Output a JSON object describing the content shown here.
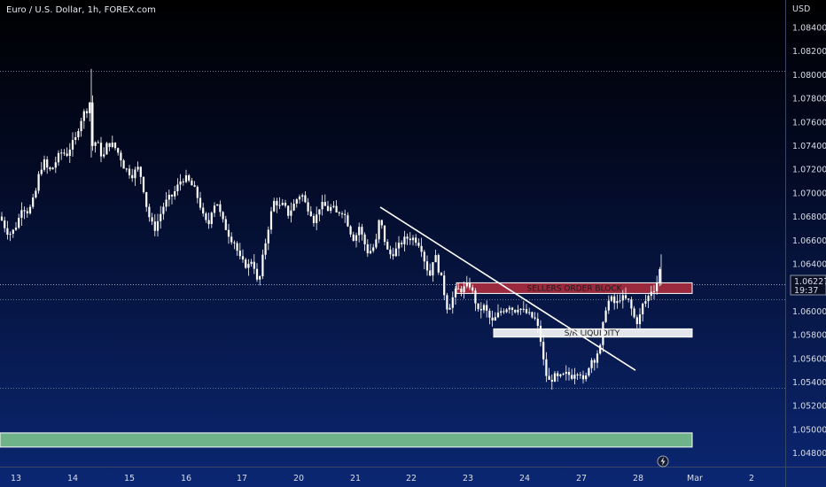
{
  "header": {
    "symbol_title": "Euro / U.S. Dollar, 1h, FOREX.com",
    "currency": "USD"
  },
  "price_label": {
    "price": "1.06227",
    "countdown": "19:37"
  },
  "colors": {
    "background_top": "#000000",
    "background_bottom": "#0a2470",
    "candle": "#ffffff",
    "seller_zone": "#9b2a3f",
    "sr_zone": "#e3e6ea",
    "green_zone": "#6fb38a",
    "trendline": "#ffffff"
  },
  "zones": {
    "sellers_label": "SELLERS ORDER BLOCK",
    "sr_label": "S/R LIQUIDITY"
  },
  "chart_data": {
    "type": "candlestick",
    "ylim": [
      1.0472,
      1.086
    ],
    "y_ticks": [
      "1.08400",
      "1.08200",
      "1.08000",
      "1.07800",
      "1.07600",
      "1.07400",
      "1.07200",
      "1.07000",
      "1.06800",
      "1.06600",
      "1.06400",
      "1.06200",
      "1.06000",
      "1.05800",
      "1.05600",
      "1.05400",
      "1.05200",
      "1.05000",
      "1.04800"
    ],
    "x_ticks": [
      "13",
      "14",
      "15",
      "16",
      "17",
      "20",
      "21",
      "22",
      "23",
      "24",
      "27",
      "28",
      "Mar",
      "2"
    ],
    "current_price": 1.06227,
    "horizontal_levels": [
      1.0803,
      1.061,
      1.0535
    ],
    "zones": [
      {
        "name": "SELLERS ORDER BLOCK",
        "from": 1.0615,
        "to": 1.0624
      },
      {
        "name": "S/R LIQUIDITY",
        "from": 1.0578,
        "to": 1.0585
      },
      {
        "name": "",
        "from": 1.0485,
        "to": 1.0497
      }
    ],
    "trendline": [
      [
        1.0688,
        "21"
      ],
      [
        1.055,
        "28"
      ]
    ],
    "close_path": [
      [
        0,
        1.068
      ],
      [
        5,
        1.0672
      ],
      [
        10,
        1.0665
      ],
      [
        15,
        1.0668
      ],
      [
        20,
        1.0675
      ],
      [
        25,
        1.069
      ],
      [
        30,
        1.0684
      ],
      [
        35,
        1.0688
      ],
      [
        40,
        1.07
      ],
      [
        45,
        1.072
      ],
      [
        50,
        1.0726
      ],
      [
        55,
        1.0718
      ],
      [
        60,
        1.0722
      ],
      [
        65,
        1.073
      ],
      [
        70,
        1.0735
      ],
      [
        75,
        1.0732
      ],
      [
        80,
        1.074
      ],
      [
        85,
        1.0745
      ],
      [
        90,
        1.076
      ],
      [
        95,
        1.0768
      ],
      [
        100,
        1.0772
      ],
      [
        102,
        1.078
      ],
      [
        105,
        1.073
      ],
      [
        108,
        1.0745
      ],
      [
        112,
        1.0738
      ],
      [
        116,
        1.0728
      ],
      [
        120,
        1.074
      ],
      [
        125,
        1.0742
      ],
      [
        130,
        1.0738
      ],
      [
        135,
        1.0732
      ],
      [
        140,
        1.0722
      ],
      [
        145,
        1.0718
      ],
      [
        150,
        1.0715
      ],
      [
        155,
        1.0722
      ],
      [
        160,
        1.0712
      ],
      [
        165,
        1.069
      ],
      [
        170,
        1.0675
      ],
      [
        175,
        1.067
      ],
      [
        180,
        1.068
      ],
      [
        185,
        1.069
      ],
      [
        190,
        1.0695
      ],
      [
        195,
        1.0698
      ],
      [
        200,
        1.0705
      ],
      [
        205,
        1.0712
      ],
      [
        210,
        1.0712
      ],
      [
        215,
        1.0708
      ],
      [
        220,
        1.0702
      ],
      [
        225,
        1.0692
      ],
      [
        230,
        1.0678
      ],
      [
        235,
        1.0672
      ],
      [
        240,
        1.069
      ],
      [
        245,
        1.0692
      ],
      [
        250,
        1.0678
      ],
      [
        255,
        1.067
      ],
      [
        260,
        1.0662
      ],
      [
        265,
        1.0658
      ],
      [
        270,
        1.0645
      ],
      [
        275,
        1.064
      ],
      [
        280,
        1.0638
      ],
      [
        285,
        1.0645
      ],
      [
        290,
        1.0625
      ],
      [
        293,
        1.0628
      ],
      [
        297,
        1.0648
      ],
      [
        300,
        1.066
      ],
      [
        305,
        1.068
      ],
      [
        310,
        1.0695
      ],
      [
        315,
        1.0688
      ],
      [
        320,
        1.069
      ],
      [
        325,
        1.0682
      ],
      [
        330,
        1.0688
      ],
      [
        335,
        1.0695
      ],
      [
        340,
        1.07
      ],
      [
        345,
        1.069
      ],
      [
        350,
        1.0685
      ],
      [
        355,
        1.0675
      ],
      [
        360,
        1.0688
      ],
      [
        365,
        1.069
      ],
      [
        370,
        1.0686
      ],
      [
        375,
        1.0688
      ],
      [
        380,
        1.0682
      ],
      [
        385,
        1.0686
      ],
      [
        390,
        1.068
      ],
      [
        395,
        1.0668
      ],
      [
        400,
        1.066
      ],
      [
        405,
        1.0672
      ],
      [
        410,
        1.066
      ],
      [
        415,
        1.065
      ],
      [
        420,
        1.0652
      ],
      [
        425,
        1.066
      ],
      [
        428,
        1.0678
      ],
      [
        432,
        1.0668
      ],
      [
        436,
        1.0652
      ],
      [
        440,
        1.0648
      ],
      [
        445,
        1.065
      ],
      [
        450,
        1.0655
      ],
      [
        455,
        1.066
      ],
      [
        460,
        1.0662
      ],
      [
        465,
        1.0662
      ],
      [
        470,
        1.066
      ],
      [
        475,
        1.0655
      ],
      [
        480,
        1.064
      ],
      [
        485,
        1.063
      ],
      [
        490,
        1.065
      ],
      [
        495,
        1.0635
      ],
      [
        500,
        1.0622
      ],
      [
        503,
        1.0605
      ],
      [
        506,
        1.0602
      ],
      [
        510,
        1.061
      ],
      [
        515,
        1.0618
      ],
      [
        520,
        1.0618
      ],
      [
        525,
        1.062
      ],
      [
        530,
        1.0622
      ],
      [
        535,
        1.0612
      ],
      [
        540,
        1.0598
      ],
      [
        545,
        1.0605
      ],
      [
        550,
        1.0598
      ],
      [
        555,
        1.059
      ],
      [
        560,
        1.0595
      ],
      [
        565,
        1.06
      ],
      [
        570,
        1.0602
      ],
      [
        575,
        1.0605
      ],
      [
        580,
        1.06
      ],
      [
        585,
        1.0604
      ],
      [
        590,
        1.06
      ],
      [
        595,
        1.0598
      ],
      [
        600,
        1.0595
      ],
      [
        605,
        1.0592
      ],
      [
        610,
        1.0575
      ],
      [
        615,
        1.0548
      ],
      [
        620,
        1.054
      ],
      [
        625,
        1.0545
      ],
      [
        630,
        1.0543
      ],
      [
        635,
        1.0545
      ],
      [
        640,
        1.0547
      ],
      [
        645,
        1.0545
      ],
      [
        650,
        1.055
      ],
      [
        655,
        1.0548
      ],
      [
        658,
        1.054
      ],
      [
        662,
        1.0545
      ],
      [
        666,
        1.056
      ],
      [
        670,
        1.0558
      ],
      [
        674,
        1.0565
      ],
      [
        678,
        1.057
      ],
      [
        682,
        1.06
      ],
      [
        686,
        1.0608
      ],
      [
        690,
        1.061
      ],
      [
        695,
        1.0605
      ],
      [
        700,
        1.0612
      ],
      [
        705,
        1.061
      ],
      [
        710,
        1.0608
      ],
      [
        715,
        1.0595
      ],
      [
        720,
        1.059
      ],
      [
        725,
        1.0605
      ],
      [
        730,
        1.061
      ],
      [
        735,
        1.0618
      ],
      [
        740,
        1.062
      ],
      [
        743,
        1.0632
      ],
      [
        746,
        1.0638
      ]
    ]
  }
}
